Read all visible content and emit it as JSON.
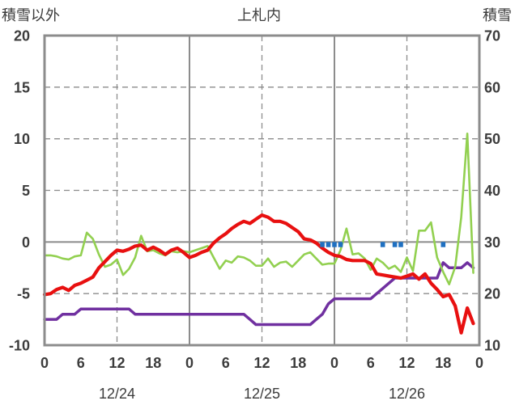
{
  "chart_data": {
    "type": "line",
    "title": "上札内",
    "ylabel": "積雪以外",
    "y2label": "積雪",
    "ylim": [
      -10,
      20
    ],
    "y2lim": [
      10,
      70
    ],
    "grid": true,
    "y_tick_labels": [
      "20",
      "15",
      "10",
      "5",
      "0",
      "-5",
      "-10"
    ],
    "y2_tick_labels": [
      "70",
      "60",
      "50",
      "40",
      "30",
      "20",
      "10"
    ],
    "x_tick_labels": [
      "0",
      "6",
      "12",
      "18",
      "0",
      "6",
      "12",
      "18",
      "0",
      "6",
      "12",
      "18",
      "0"
    ],
    "date_labels": [
      "12/24",
      "12/25",
      "12/26"
    ],
    "series": [
      {
        "type": "line",
        "color": "#7030a0",
        "yaxis": 2,
        "values_by_day": [
          [
            15,
            15,
            15,
            16,
            16,
            16,
            17,
            17,
            17,
            17,
            17,
            17,
            17,
            17,
            17,
            16,
            16,
            16,
            16,
            16,
            16,
            16,
            16,
            16
          ],
          [
            16,
            16,
            16,
            16,
            16,
            16,
            16,
            16,
            16,
            16,
            15,
            14,
            14,
            14,
            14,
            14,
            14,
            14,
            14,
            14,
            14,
            15,
            16,
            18
          ],
          [
            19,
            19,
            19,
            19,
            19,
            19,
            19,
            20,
            21,
            22,
            23,
            23,
            23,
            23,
            23,
            23,
            23,
            23,
            26,
            25,
            25,
            25,
            26,
            25
          ]
        ]
      },
      {
        "type": "line",
        "color": "#92d050",
        "yaxis": 1,
        "values_by_day": [
          [
            -1.3,
            -1.3,
            -1.4,
            -1.6,
            -1.7,
            -1.4,
            -1.3,
            0.9,
            0.3,
            -1.2,
            -2.4,
            -2.2,
            -1.7,
            -3.2,
            -2.6,
            -1.5,
            0.6,
            -0.9,
            -0.8,
            -1.1,
            -1.3,
            -0.9,
            -1.0,
            -0.9
          ],
          [
            -1.0,
            -0.8,
            -0.6,
            -0.4,
            -1.5,
            -2.6,
            -1.8,
            -2.0,
            -1.4,
            -1.5,
            -1.8,
            -2.3,
            -2.3,
            -1.6,
            -2.4,
            -2.0,
            -1.9,
            -2.4,
            -1.8,
            -1.2,
            -1.0,
            -1.6,
            -2.2,
            -2.1
          ],
          [
            -2.1,
            -0.8,
            1.3,
            -1.2,
            -1.1,
            -1.6,
            -2.7,
            -1.6,
            -2.0,
            -2.6,
            -2.3,
            -2.9,
            -1.5,
            -2.8,
            1.1,
            1.1,
            1.9,
            -1.5,
            -2.9,
            -4.1,
            -2.4,
            2.4,
            10.5,
            -3.0
          ]
        ]
      },
      {
        "type": "line",
        "color": "#e81010",
        "yaxis": 1,
        "values_by_day": [
          [
            -5.1,
            -5.0,
            -4.6,
            -4.4,
            -4.7,
            -4.2,
            -4.0,
            -3.7,
            -3.4,
            -2.5,
            -1.9,
            -1.3,
            -0.8,
            -0.9,
            -0.7,
            -0.4,
            -0.3,
            -0.8,
            -0.5,
            -0.8,
            -1.2,
            -0.8,
            -0.6,
            -1.0
          ],
          [
            -1.5,
            -1.3,
            -1.0,
            -0.8,
            -0.1,
            0.4,
            0.8,
            1.3,
            1.7,
            2.0,
            1.8,
            2.2,
            2.6,
            2.4,
            2.0,
            2.0,
            1.8,
            1.4,
            1.0,
            0.3,
            0.2,
            -0.1,
            -0.6,
            -1.0
          ],
          [
            -1.3,
            -1.4,
            -1.7,
            -1.8,
            -1.8,
            -1.8,
            -2.1,
            -3.1,
            -3.2,
            -3.3,
            -3.4,
            -3.5,
            -3.3,
            -3.1,
            -3.6,
            -3.1,
            -4.0,
            -4.6,
            -5.3,
            -5.1,
            -6.2,
            -8.8,
            -6.4,
            -7.9
          ]
        ]
      },
      {
        "type": "bar",
        "color": "#1f70c1",
        "yaxis": 1,
        "values_by_day": [
          [
            null,
            null,
            null,
            null,
            null,
            null,
            null,
            null,
            null,
            null,
            null,
            null,
            null,
            null,
            null,
            null,
            null,
            null,
            null,
            null,
            null,
            null,
            null,
            null
          ],
          [
            null,
            null,
            null,
            null,
            null,
            null,
            null,
            null,
            null,
            null,
            null,
            null,
            null,
            null,
            null,
            null,
            null,
            null,
            null,
            null,
            null,
            null,
            -0.5,
            -0.5
          ],
          [
            -0.5,
            -0.5,
            null,
            null,
            null,
            null,
            null,
            null,
            -0.5,
            null,
            -0.5,
            -0.5,
            null,
            null,
            null,
            null,
            null,
            null,
            -0.5,
            null,
            null,
            null,
            null,
            null
          ]
        ]
      }
    ]
  }
}
